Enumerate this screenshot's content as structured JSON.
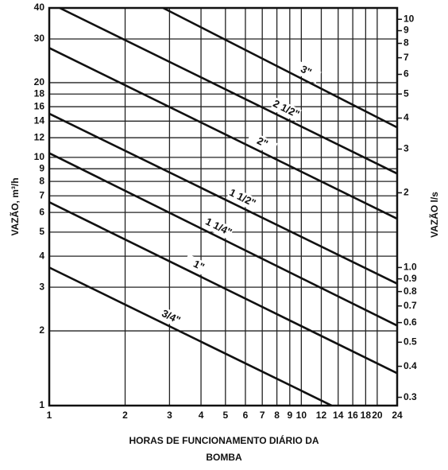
{
  "chart_data": {
    "type": "line",
    "ylabel": "VAZÃO, m³/h",
    "y2label": "VAZÃO l/s",
    "xlabel": [
      "HORAS DE FUNCIONAMENTO DIÁRIO DA",
      "BOMBA"
    ],
    "xscale": "log",
    "yscale": "log",
    "grid": true,
    "color": "#111111",
    "xlim": [
      1,
      24
    ],
    "xticks": [
      1,
      2,
      3,
      4,
      5,
      6,
      7,
      8,
      9,
      10,
      12,
      14,
      16,
      18,
      20,
      24
    ],
    "ylim": [
      1,
      40
    ],
    "yticks": [
      1,
      2,
      3,
      4,
      5,
      6,
      7,
      8,
      9,
      10,
      12,
      14,
      16,
      18,
      20,
      30,
      40
    ],
    "y2lim": [
      0.2778,
      11.11
    ],
    "y2ticks": [
      0.3,
      0.4,
      0.5,
      0.6,
      0.7,
      0.8,
      0.9,
      {
        "value": 1,
        "label": "1.0"
      },
      2,
      3,
      4,
      5,
      6,
      7,
      8,
      9,
      10
    ],
    "series": [
      {
        "name": "3\"",
        "x": [
          2.83,
          24
        ],
        "values": [
          40,
          13.2
        ]
      },
      {
        "name": "2 1/2\"",
        "x": [
          1.1,
          24
        ],
        "values": [
          40,
          8.6
        ]
      },
      {
        "name": "2\"",
        "x": [
          1,
          24
        ],
        "values": [
          27.6,
          5.66
        ]
      },
      {
        "name": "1 1/2\"",
        "x": [
          1,
          24
        ],
        "values": [
          15,
          3.1
        ]
      },
      {
        "name": "1 1/4\"",
        "x": [
          1,
          24
        ],
        "values": [
          10.4,
          2.1
        ]
      },
      {
        "name": "1\"",
        "x": [
          1,
          24
        ],
        "values": [
          6.6,
          1.35
        ]
      },
      {
        "name": "3/4\"",
        "x": [
          1,
          13.2
        ],
        "values": [
          3.6,
          1
        ]
      }
    ]
  }
}
